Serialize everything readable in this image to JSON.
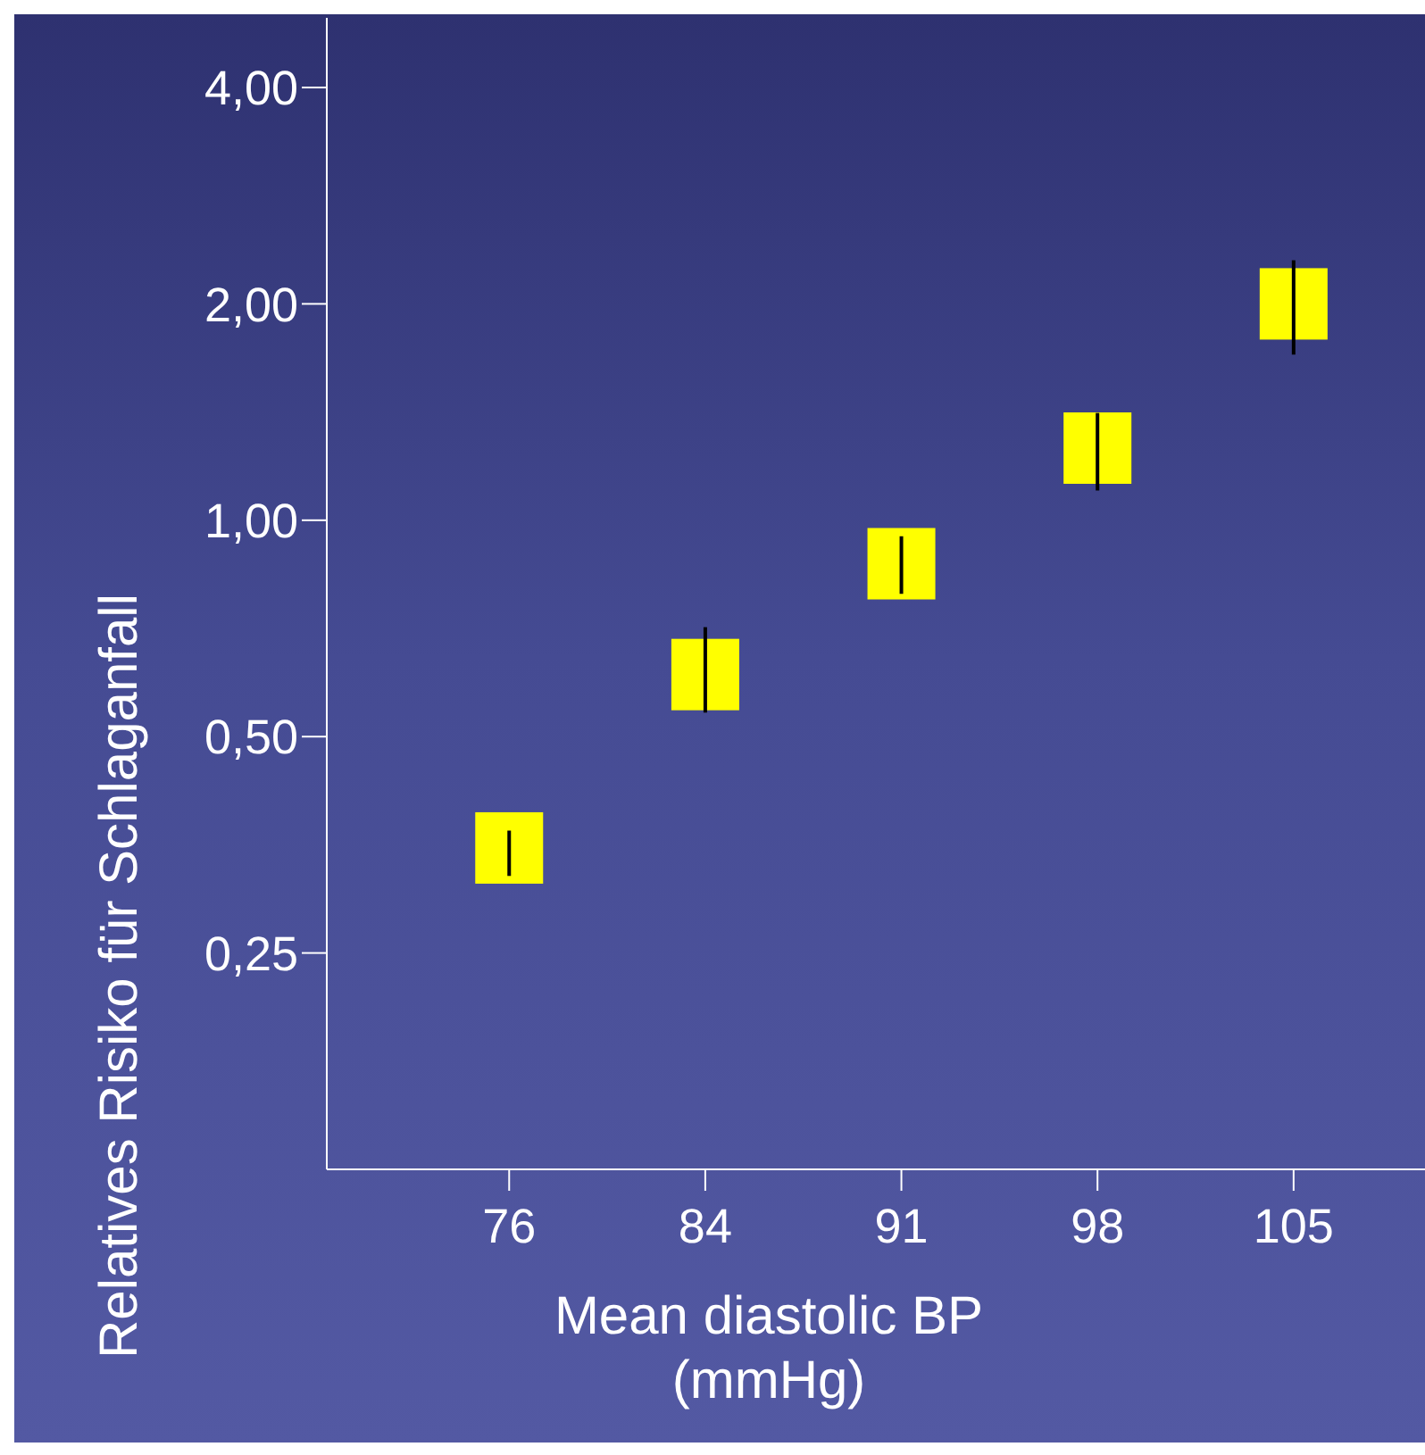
{
  "chart_data": {
    "type": "scatter",
    "categories": [
      "76",
      "84",
      "91",
      "98",
      "105"
    ],
    "series": [
      {
        "color": "#ffff00",
        "values": [
          0.35,
          0.61,
          0.87,
          1.26,
          2.0
        ],
        "errors": [
          [
            0.32,
            0.37
          ],
          [
            0.54,
            0.71
          ],
          [
            0.79,
            0.95
          ],
          [
            1.1,
            1.41
          ],
          [
            1.7,
            2.3
          ]
        ]
      }
    ],
    "marker": "square",
    "log": "y",
    "ylim": [
      0.125,
      5
    ],
    "yticks": [
      {
        "value": 0.25,
        "label": "0,25"
      },
      {
        "value": 0.5,
        "label": "0,50"
      },
      {
        "value": 1,
        "label": "1,00"
      },
      {
        "value": 2,
        "label": "2,00"
      },
      {
        "value": 4,
        "label": "4,00"
      }
    ],
    "xlabel": "Mean diastolic BP\n(mmHg)",
    "ylabel": "Relatives Risiko für Schlaganfall",
    "grid": false,
    "legend": false
  }
}
